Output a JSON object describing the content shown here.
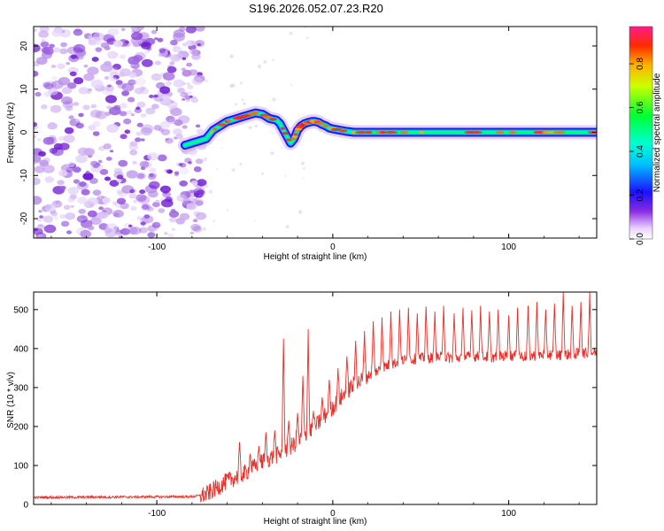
{
  "title": "S196.2026.052.07.23.R20",
  "chart_data": [
    {
      "type": "heatmap",
      "name": "spectrogram",
      "xlabel": "Height of straight line (km)",
      "ylabel": "Frequency (Hz)",
      "xlim": [
        -170,
        150
      ],
      "ylim": [
        -24.5,
        24.5
      ],
      "xticks": [
        -100,
        0,
        100
      ],
      "yticks": [
        -20,
        -10,
        0,
        10,
        20
      ],
      "ridge": {
        "x": [
          -84,
          -76,
          -72,
          -68,
          -64,
          -60,
          -56,
          -52,
          -48,
          -44,
          -40,
          -36,
          -32,
          -30,
          -28,
          -26,
          -24,
          -22,
          -20,
          -18,
          -16,
          -14,
          -12,
          -10,
          -8,
          -6,
          -4,
          -2,
          0,
          4,
          8,
          12,
          150
        ],
        "freq": [
          -3.0,
          -2.0,
          -1.5,
          0.5,
          1.5,
          2.5,
          3.0,
          3.5,
          4.0,
          4.5,
          4.2,
          3.2,
          2.8,
          2.0,
          0.5,
          -1.0,
          -2.5,
          -1.5,
          0.5,
          1.5,
          2.0,
          2.3,
          2.5,
          2.5,
          2.3,
          1.8,
          1.5,
          1.0,
          0.8,
          0.5,
          0.2,
          0.0,
          0.0
        ]
      },
      "noise_region_x": [
        -170,
        -74
      ],
      "colorbar": {
        "label": "Normalized spectral amplitude",
        "min": 0.0,
        "max": 0.97,
        "ticks": [
          "0.0",
          "0.2",
          "0.4",
          "0.6",
          "0.8"
        ],
        "tick_values": [
          0.0,
          0.2,
          0.4,
          0.6,
          0.8
        ]
      }
    },
    {
      "type": "line",
      "name": "snr",
      "xlabel": "Height of straight line (km)",
      "ylabel": "SNR (10 * v/v)",
      "xlim": [
        -170,
        150
      ],
      "ylim": [
        0,
        545
      ],
      "xticks": [
        -100,
        0,
        100
      ],
      "yticks": [
        0,
        100,
        200,
        300,
        400,
        500
      ],
      "color": "#e8302a",
      "baseline": {
        "x": [
          -170,
          -80,
          -72,
          -60,
          -50,
          -40,
          -30,
          -20,
          -10,
          0,
          10,
          20,
          30,
          40,
          50,
          60,
          70,
          80,
          90,
          100,
          110,
          120,
          130,
          140,
          150
        ],
        "y": [
          18,
          20,
          25,
          60,
          80,
          110,
          130,
          160,
          200,
          250,
          300,
          330,
          355,
          370,
          375,
          378,
          376,
          380,
          378,
          382,
          380,
          385,
          383,
          388,
          390
        ]
      },
      "spikes": [
        {
          "x": -53,
          "y": 160
        },
        {
          "x": -47,
          "y": 130
        },
        {
          "x": -42,
          "y": 150
        },
        {
          "x": -38,
          "y": 185
        },
        {
          "x": -33,
          "y": 190
        },
        {
          "x": -28,
          "y": 425
        },
        {
          "x": -25,
          "y": 215
        },
        {
          "x": -20,
          "y": 235
        },
        {
          "x": -17,
          "y": 330
        },
        {
          "x": -14,
          "y": 450
        },
        {
          "x": -11,
          "y": 240
        },
        {
          "x": -6,
          "y": 275
        },
        {
          "x": -2,
          "y": 320
        },
        {
          "x": 3,
          "y": 350
        },
        {
          "x": 8,
          "y": 380
        },
        {
          "x": 13,
          "y": 420
        },
        {
          "x": 18,
          "y": 445
        },
        {
          "x": 23,
          "y": 470
        },
        {
          "x": 28,
          "y": 480
        },
        {
          "x": 33,
          "y": 495
        },
        {
          "x": 38,
          "y": 500
        },
        {
          "x": 43,
          "y": 505
        },
        {
          "x": 48,
          "y": 490
        },
        {
          "x": 53,
          "y": 508
        },
        {
          "x": 58,
          "y": 495
        },
        {
          "x": 63,
          "y": 510
        },
        {
          "x": 69,
          "y": 490
        },
        {
          "x": 74,
          "y": 505
        },
        {
          "x": 79,
          "y": 498
        },
        {
          "x": 84,
          "y": 510
        },
        {
          "x": 89,
          "y": 495
        },
        {
          "x": 94,
          "y": 500
        },
        {
          "x": 100,
          "y": 485
        },
        {
          "x": 105,
          "y": 505
        },
        {
          "x": 111,
          "y": 510
        },
        {
          "x": 116,
          "y": 520
        },
        {
          "x": 121,
          "y": 500
        },
        {
          "x": 126,
          "y": 515
        },
        {
          "x": 131,
          "y": 545
        },
        {
          "x": 136,
          "y": 510
        },
        {
          "x": 141,
          "y": 520
        },
        {
          "x": 146,
          "y": 545
        }
      ]
    }
  ]
}
